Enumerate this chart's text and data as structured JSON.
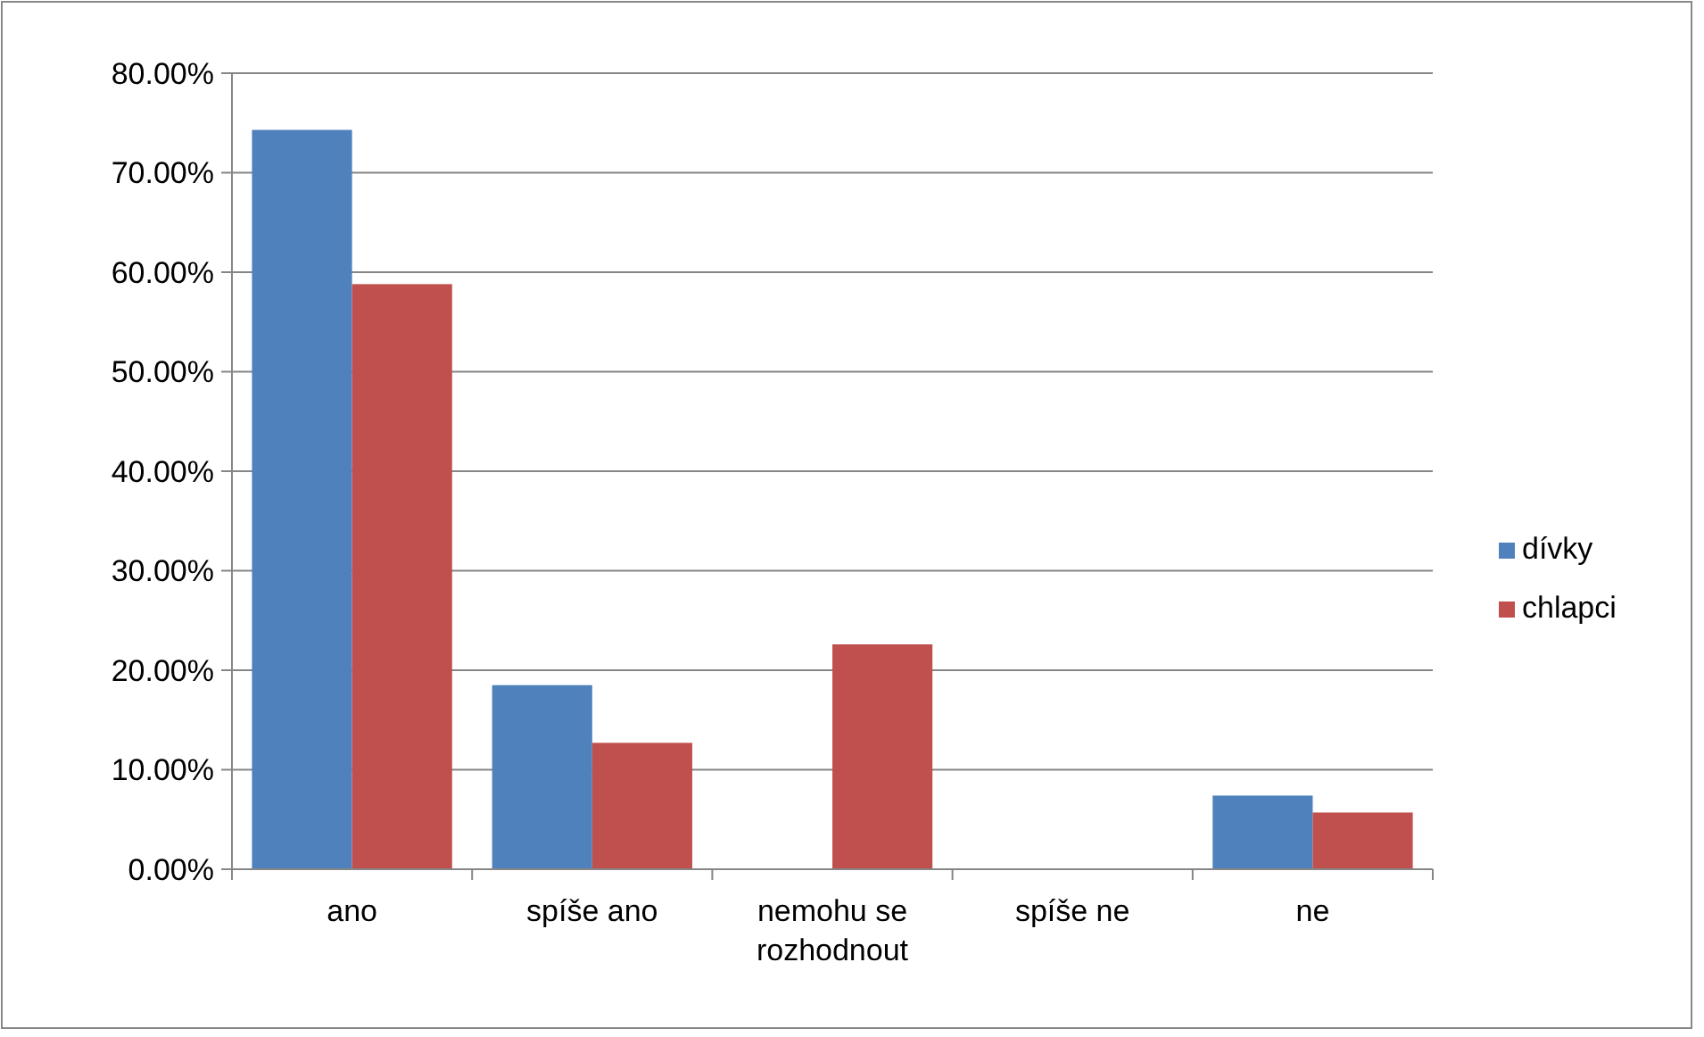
{
  "chart_data": {
    "type": "bar",
    "categories": [
      "ano",
      "spíše ano",
      "nemohu se rozhodnout",
      "spíše ne",
      "ne"
    ],
    "series": [
      {
        "name": "dívky",
        "color": "#4f81bd",
        "values": [
          74.3,
          18.5,
          0,
          0,
          7.4
        ]
      },
      {
        "name": "chlapci",
        "color": "#c0504d",
        "values": [
          58.8,
          12.7,
          22.6,
          0,
          5.7
        ]
      }
    ],
    "ylim": [
      0,
      80
    ],
    "yticks": [
      {
        "value": 0,
        "label": "0.00%"
      },
      {
        "value": 10,
        "label": "10.00%"
      },
      {
        "value": 20,
        "label": "20.00%"
      },
      {
        "value": 30,
        "label": "30.00%"
      },
      {
        "value": 40,
        "label": "40.00%"
      },
      {
        "value": 50,
        "label": "50.00%"
      },
      {
        "value": 60,
        "label": "60.00%"
      },
      {
        "value": 70,
        "label": "70.00%"
      },
      {
        "value": 80,
        "label": "80.00%"
      }
    ],
    "grid": "y",
    "legend": "right"
  }
}
